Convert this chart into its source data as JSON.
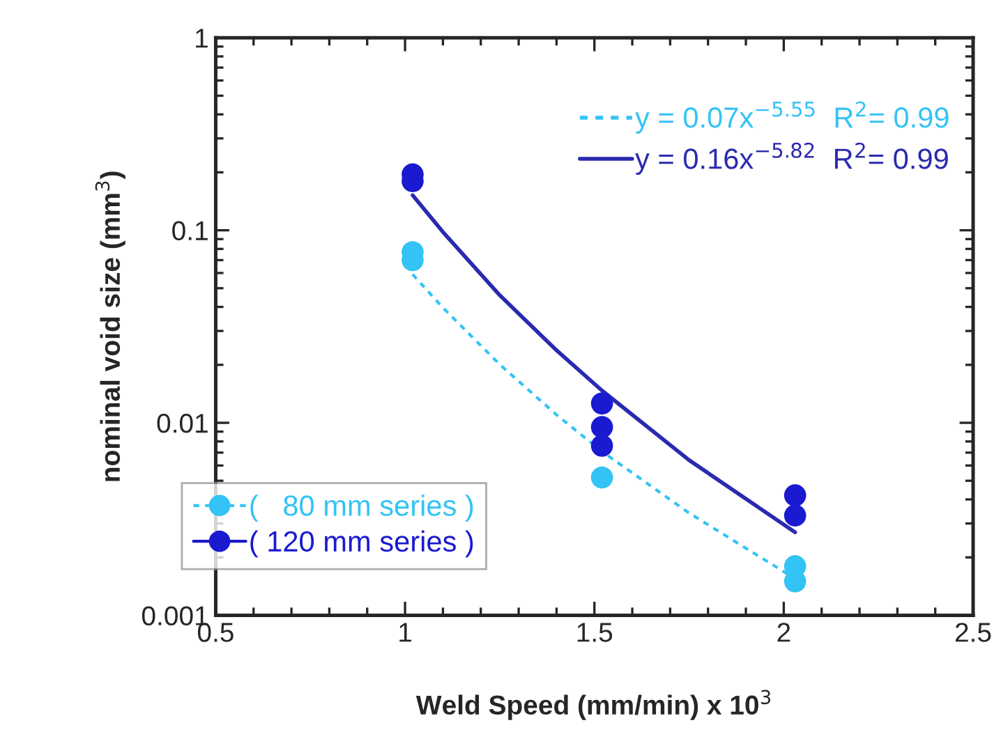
{
  "chart_data": {
    "type": "scatter",
    "xlabel": "Weld Speed (mm/min) x 10$^{3}$",
    "ylabel": "nominal void size (mm$^{3}$)",
    "log": "y",
    "xlim": [
      0.5,
      2.5
    ],
    "xticks": [
      0.5,
      1,
      1.5,
      2,
      2.5
    ],
    "ylim": [
      0.001,
      1
    ],
    "yticks": [
      0.001,
      0.01,
      0.1,
      1
    ],
    "grid": false,
    "legend": "bottom left",
    "series": [
      {
        "name": "(   80 mm series )",
        "color": "#33c3f5",
        "marker": "circle",
        "line_style": "dotted",
        "x": [
          1.02,
          1.02,
          1.52,
          2.03,
          2.03
        ],
        "values": [
          0.077,
          0.07,
          0.0052,
          0.0018,
          0.0015
        ]
      },
      {
        "name": "( 120 mm series )",
        "color": "#1a1ad0",
        "marker": "circle",
        "line_style": "solid",
        "x": [
          1.02,
          1.02,
          1.52,
          1.52,
          1.52,
          2.03,
          2.03
        ],
        "values": [
          0.195,
          0.18,
          0.0126,
          0.0095,
          0.0076,
          0.0042,
          0.0033
        ]
      },
      {
        "name": "y = 0.07x$^{−5.55}$  R$^{2}$= 0.99",
        "color": "#33c3f5",
        "type": "line",
        "marker": "none",
        "line_style": "dotted",
        "x": [
          1.02,
          1.1,
          1.25,
          1.4,
          1.52,
          1.75,
          2.03
        ],
        "values": [
          0.059,
          0.0396,
          0.0201,
          0.011,
          0.0071,
          0.0034,
          0.00155
        ]
      },
      {
        "name": "y = 0.16x$^{−5.82}$  R$^{2}$= 0.99",
        "color": "#2a2ab0",
        "type": "line",
        "marker": "none",
        "line_style": "solid",
        "x": [
          1.02,
          1.1,
          1.25,
          1.4,
          1.52,
          1.75,
          2.03
        ],
        "values": [
          0.152,
          0.098,
          0.046,
          0.0238,
          0.0147,
          0.0064,
          0.0027
        ]
      }
    ]
  }
}
